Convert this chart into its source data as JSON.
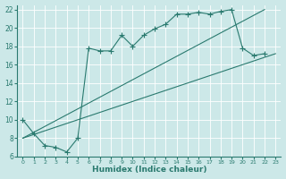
{
  "xlabel": "Humidex (Indice chaleur)",
  "bg_color": "#cce8e8",
  "line_color": "#2a7a6f",
  "xlim": [
    -0.5,
    23.5
  ],
  "ylim": [
    6,
    22.5
  ],
  "xticks": [
    0,
    1,
    2,
    3,
    4,
    5,
    6,
    7,
    8,
    9,
    10,
    11,
    12,
    13,
    14,
    15,
    16,
    17,
    18,
    19,
    20,
    21,
    22,
    23
  ],
  "yticks": [
    6,
    8,
    10,
    12,
    14,
    16,
    18,
    20,
    22
  ],
  "series": [
    {
      "x": [
        0,
        1,
        2,
        3,
        4,
        5,
        6,
        7,
        8,
        9,
        10,
        11,
        12,
        13,
        14,
        15,
        16,
        17,
        18,
        19,
        20,
        21,
        22
      ],
      "y": [
        10,
        8.5,
        7.2,
        7.0,
        6.5,
        8.0,
        17.8,
        17.5,
        17.5,
        19.2,
        18.0,
        19.2,
        19.9,
        20.4,
        21.5,
        21.5,
        21.7,
        21.5,
        21.8,
        22.0,
        17.8,
        17.0,
        17.2
      ],
      "marker": "+"
    },
    {
      "x": [
        0,
        22
      ],
      "y": [
        8.0,
        22.0
      ],
      "marker": null
    },
    {
      "x": [
        0,
        23
      ],
      "y": [
        8.0,
        17.2
      ],
      "marker": null
    }
  ]
}
